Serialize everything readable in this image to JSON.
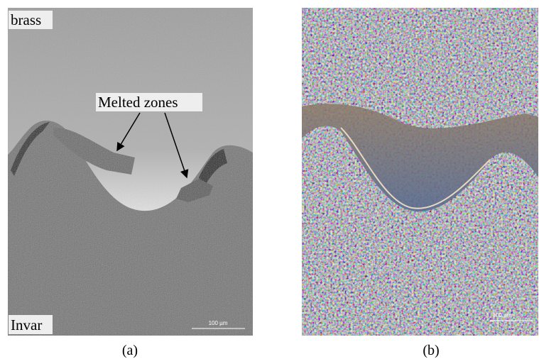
{
  "panels": [
    {
      "top_label": "brass",
      "annotation": "Melted zones",
      "bottom_label": "Invar",
      "scale_bar": "100 µm",
      "caption": "(a)"
    },
    {
      "scale_bar": "100 µm",
      "caption": "(b)"
    }
  ]
}
